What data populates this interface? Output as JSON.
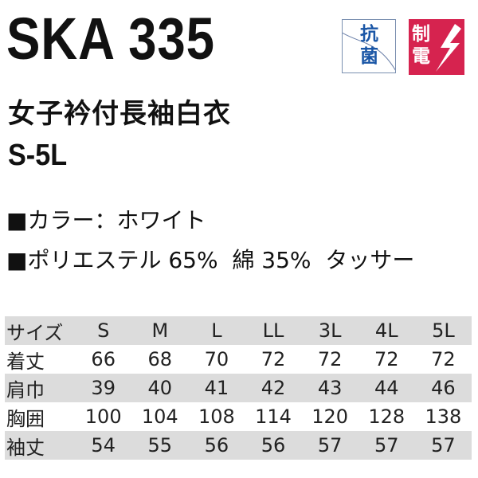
{
  "product": {
    "code": "SKA 335",
    "name": "女子衿付長袖白衣",
    "size_range": "S-5L"
  },
  "badges": [
    {
      "label": "抗菌",
      "color": "#1a56a6"
    },
    {
      "label": "制電",
      "color": "#d6234f",
      "icon": "lightning-bolt-icon"
    }
  ],
  "specs": {
    "color": "■カラー：ホワイト",
    "material": "■ポリエステル 65%  綿 35%  タッサー"
  },
  "size_table": {
    "header": [
      "サイズ",
      "S",
      "M",
      "L",
      "LL",
      "3L",
      "4L",
      "5L"
    ],
    "rows": [
      [
        "着丈",
        "66",
        "68",
        "70",
        "72",
        "72",
        "72",
        "72"
      ],
      [
        "肩巾",
        "39",
        "40",
        "41",
        "42",
        "43",
        "44",
        "46"
      ],
      [
        "胸囲",
        "100",
        "104",
        "108",
        "114",
        "120",
        "128",
        "138"
      ],
      [
        "袖丈",
        "54",
        "55",
        "56",
        "56",
        "57",
        "57",
        "57"
      ]
    ]
  }
}
